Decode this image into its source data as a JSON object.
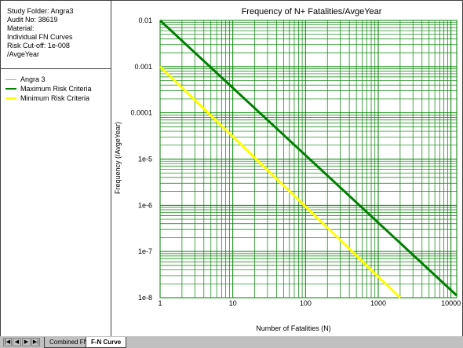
{
  "info": {
    "lines": [
      "Study Folder: Angra3",
      "Audit No: 38619",
      "Material:",
      "Individual FN Curves",
      "Risk Cut-off: 1e-008",
      "/AvgeYear"
    ]
  },
  "legend": {
    "items": [
      {
        "label": "Angra 3",
        "color": "#ff8080"
      },
      {
        "label": "Maximum Risk Criteria",
        "color": "#008000"
      },
      {
        "label": "Minimum Risk Criteria",
        "color": "#ffff00"
      }
    ]
  },
  "tabs": {
    "nav_first": "|◀",
    "nav_prev": "◀",
    "nav_next": "▶",
    "nav_last": "▶|",
    "items": [
      {
        "label": "Combined FN"
      },
      {
        "label": "F-N Curve"
      }
    ]
  },
  "chart_data": {
    "type": "line",
    "title": "Frequency of N+ Fatalities/AvgeYear",
    "xlabel": "Number of Fatalities (N)",
    "ylabel": "Frequency (/AvgeYear)",
    "x_scale": "log",
    "y_scale": "log",
    "xlim": [
      1,
      12000
    ],
    "ylim": [
      1e-08,
      0.01
    ],
    "grid": true,
    "x_ticks": [
      {
        "value": 1,
        "label": "1"
      },
      {
        "value": 10,
        "label": "10"
      },
      {
        "value": 100,
        "label": "100"
      },
      {
        "value": 1000,
        "label": "1000"
      },
      {
        "value": 10000,
        "label": "10000"
      }
    ],
    "y_ticks": [
      {
        "value": 0.01,
        "label": "0.01"
      },
      {
        "value": 0.001,
        "label": "0.001"
      },
      {
        "value": 0.0001,
        "label": "0.0001"
      },
      {
        "value": 1e-05,
        "label": "1e-5"
      },
      {
        "value": 1e-06,
        "label": "1e-6"
      },
      {
        "value": 1e-07,
        "label": "1e-7"
      },
      {
        "value": 1e-08,
        "label": "1e-8"
      }
    ],
    "series": [
      {
        "name": "Maximum Risk Criteria",
        "color": "#008000",
        "points": [
          [
            1,
            0.01
          ],
          [
            12000,
            1.12e-08
          ]
        ]
      },
      {
        "name": "Minimum Risk Criteria",
        "color": "#ffff00",
        "points": [
          [
            1,
            0.001
          ],
          [
            2000,
            1e-08
          ]
        ]
      }
    ]
  }
}
